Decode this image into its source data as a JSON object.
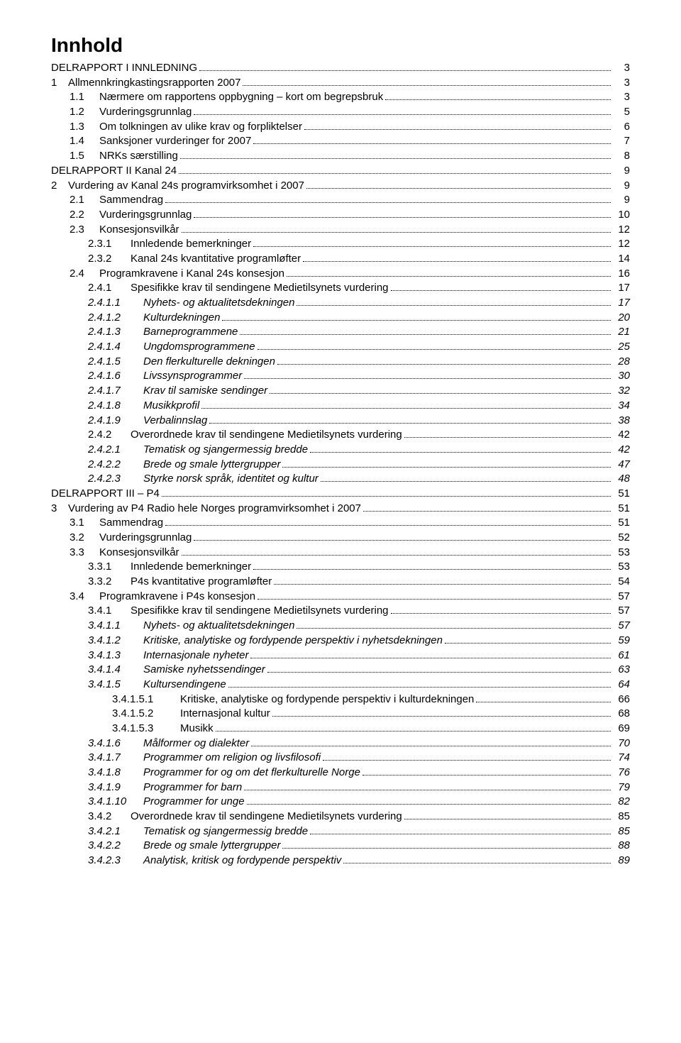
{
  "title": "Innhold",
  "toc": [
    {
      "level": 0,
      "num": "",
      "text": "DELRAPPORT I INNLEDNING",
      "page": "3",
      "italic": false
    },
    {
      "level": 1,
      "num": "1",
      "text": "Allmennkringkastingsrapporten 2007",
      "page": "3",
      "italic": false
    },
    {
      "level": 2,
      "num": "1.1",
      "text": "Nærmere om rapportens oppbygning – kort om begrepsbruk",
      "page": "3",
      "italic": false
    },
    {
      "level": 2,
      "num": "1.2",
      "text": "Vurderingsgrunnlag",
      "page": "5",
      "italic": false
    },
    {
      "level": 2,
      "num": "1.3",
      "text": "Om tolkningen av ulike krav og forpliktelser",
      "page": "6",
      "italic": false
    },
    {
      "level": 2,
      "num": "1.4",
      "text": "Sanksjoner vurderinger for 2007",
      "page": "7",
      "italic": false
    },
    {
      "level": 2,
      "num": "1.5",
      "text": "NRKs særstilling",
      "page": "8",
      "italic": false
    },
    {
      "level": 0,
      "num": "",
      "text": "DELRAPPORT II Kanal 24",
      "page": "9",
      "italic": false
    },
    {
      "level": 1,
      "num": "2",
      "text": "Vurdering av Kanal 24s programvirksomhet i 2007",
      "page": "9",
      "italic": false
    },
    {
      "level": 2,
      "num": "2.1",
      "text": "Sammendrag",
      "page": "9",
      "italic": false
    },
    {
      "level": 2,
      "num": "2.2",
      "text": "Vurderingsgrunnlag",
      "page": "10",
      "italic": false
    },
    {
      "level": 2,
      "num": "2.3",
      "text": "Konsesjonsvilkår",
      "page": "12",
      "italic": false
    },
    {
      "level": 3,
      "num": "2.3.1",
      "text": "Innledende bemerkninger",
      "page": "12",
      "italic": false
    },
    {
      "level": 3,
      "num": "2.3.2",
      "text": "Kanal 24s kvantitative programløfter",
      "page": "14",
      "italic": false
    },
    {
      "level": 2,
      "num": "2.4",
      "text": "Programkravene i Kanal 24s konsesjon",
      "page": "16",
      "italic": false
    },
    {
      "level": 3,
      "num": "2.4.1",
      "text": "Spesifikke krav til sendingene Medietilsynets vurdering",
      "page": "17",
      "italic": false
    },
    {
      "level": 4,
      "num": "2.4.1.1",
      "text": "Nyhets- og aktualitetsdekningen",
      "page": "17",
      "italic": true
    },
    {
      "level": 4,
      "num": "2.4.1.2",
      "text": "Kulturdekningen",
      "page": "20",
      "italic": true
    },
    {
      "level": 4,
      "num": "2.4.1.3",
      "text": "Barneprogrammene",
      "page": "21",
      "italic": true
    },
    {
      "level": 4,
      "num": "2.4.1.4",
      "text": "Ungdomsprogrammene",
      "page": "25",
      "italic": true
    },
    {
      "level": 4,
      "num": "2.4.1.5",
      "text": "Den flerkulturelle dekningen",
      "page": "28",
      "italic": true
    },
    {
      "level": 4,
      "num": "2.4.1.6",
      "text": "Livssynsprogrammer",
      "page": "30",
      "italic": true
    },
    {
      "level": 4,
      "num": "2.4.1.7",
      "text": "Krav til samiske sendinger",
      "page": "32",
      "italic": true
    },
    {
      "level": 4,
      "num": "2.4.1.8",
      "text": "Musikkprofil",
      "page": "34",
      "italic": true
    },
    {
      "level": 4,
      "num": "2.4.1.9",
      "text": "Verbalinnslag",
      "page": "38",
      "italic": true
    },
    {
      "level": 3,
      "num": "2.4.2",
      "text": "Overordnede krav til sendingene Medietilsynets vurdering",
      "page": "42",
      "italic": false
    },
    {
      "level": 4,
      "num": "2.4.2.1",
      "text": "Tematisk og sjangermessig bredde",
      "page": "42",
      "italic": true
    },
    {
      "level": 4,
      "num": "2.4.2.2",
      "text": "Brede og smale lyttergrupper",
      "page": "47",
      "italic": true
    },
    {
      "level": 4,
      "num": "2.4.2.3",
      "text": "Styrke norsk språk, identitet og kultur",
      "page": "48",
      "italic": true
    },
    {
      "level": 0,
      "num": "",
      "text": "DELRAPPORT III – P4",
      "page": "51",
      "italic": false
    },
    {
      "level": 1,
      "num": "3",
      "text": "Vurdering av P4 Radio hele Norges programvirksomhet i 2007",
      "page": "51",
      "italic": false
    },
    {
      "level": 2,
      "num": "3.1",
      "text": "Sammendrag",
      "page": "51",
      "italic": false
    },
    {
      "level": 2,
      "num": "3.2",
      "text": "Vurderingsgrunnlag",
      "page": "52",
      "italic": false
    },
    {
      "level": 2,
      "num": "3.3",
      "text": "Konsesjonsvilkår",
      "page": "53",
      "italic": false
    },
    {
      "level": 3,
      "num": "3.3.1",
      "text": "Innledende bemerkninger",
      "page": "53",
      "italic": false
    },
    {
      "level": 3,
      "num": "3.3.2",
      "text": "P4s kvantitative programløfter",
      "page": "54",
      "italic": false
    },
    {
      "level": 2,
      "num": "3.4",
      "text": "Programkravene i P4s konsesjon",
      "page": "57",
      "italic": false
    },
    {
      "level": 3,
      "num": "3.4.1",
      "text": "Spesifikke krav til sendingene Medietilsynets vurdering",
      "page": "57",
      "italic": false
    },
    {
      "level": 4,
      "num": "3.4.1.1",
      "text": "Nyhets- og aktualitetsdekningen",
      "page": "57",
      "italic": true
    },
    {
      "level": 4,
      "num": "3.4.1.2",
      "text": "Kritiske, analytiske og fordypende perspektiv i nyhetsdekningen",
      "page": "59",
      "italic": true
    },
    {
      "level": 4,
      "num": "3.4.1.3",
      "text": "Internasjonale nyheter",
      "page": "61",
      "italic": true
    },
    {
      "level": 4,
      "num": "3.4.1.4",
      "text": "Samiske nyhetssendinger",
      "page": "63",
      "italic": true
    },
    {
      "level": 4,
      "num": "3.4.1.5",
      "text": "Kultursendingene",
      "page": "64",
      "italic": true
    },
    {
      "level": 5,
      "num": "3.4.1.5.1",
      "text": "Kritiske, analytiske og fordypende perspektiv i kulturdekningen",
      "page": "66",
      "italic": false
    },
    {
      "level": 5,
      "num": "3.4.1.5.2",
      "text": "Internasjonal kultur",
      "page": "68",
      "italic": false
    },
    {
      "level": 5,
      "num": "3.4.1.5.3",
      "text": "Musikk",
      "page": "69",
      "italic": false
    },
    {
      "level": 4,
      "num": "3.4.1.6",
      "text": "Målformer og dialekter",
      "page": "70",
      "italic": true
    },
    {
      "level": 4,
      "num": "3.4.1.7",
      "text": "Programmer om religion og livsfilosofi",
      "page": "74",
      "italic": true
    },
    {
      "level": 4,
      "num": "3.4.1.8",
      "text": "Programmer for og om det flerkulturelle Norge",
      "page": "76",
      "italic": true
    },
    {
      "level": 4,
      "num": "3.4.1.9",
      "text": "Programmer for barn",
      "page": "79",
      "italic": true
    },
    {
      "level": 4,
      "num": "3.4.1.10",
      "text": "Programmer for unge",
      "page": "82",
      "italic": true
    },
    {
      "level": 3,
      "num": "3.4.2",
      "text": "Overordnede krav til sendingene Medietilsynets vurdering",
      "page": "85",
      "italic": false
    },
    {
      "level": 4,
      "num": "3.4.2.1",
      "text": "Tematisk og sjangermessig bredde",
      "page": "85",
      "italic": true
    },
    {
      "level": 4,
      "num": "3.4.2.2",
      "text": "Brede og smale lyttergrupper",
      "page": "88",
      "italic": true
    },
    {
      "level": 4,
      "num": "3.4.2.3",
      "text": "Analytisk, kritisk og fordypende perspektiv",
      "page": "89",
      "italic": true
    }
  ]
}
